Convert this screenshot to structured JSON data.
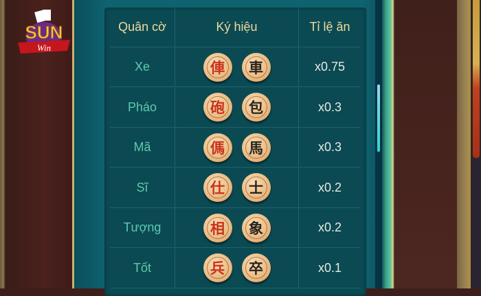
{
  "logo": {
    "text": "SUN",
    "sub": "Win"
  },
  "table": {
    "headers": [
      "Quân cờ",
      "Ký hiệu",
      "Tỉ lệ ăn"
    ],
    "rows": [
      {
        "name": "Xe",
        "red": "俥",
        "black": "車",
        "rate": "x0.75"
      },
      {
        "name": "Pháo",
        "red": "砲",
        "black": "包",
        "rate": "x0.3"
      },
      {
        "name": "Mã",
        "red": "傌",
        "black": "馬",
        "rate": "x0.3"
      },
      {
        "name": "Sĩ",
        "red": "仕",
        "black": "士",
        "rate": "x0.2"
      },
      {
        "name": "Tượng",
        "red": "相",
        "black": "象",
        "rate": "x0.2"
      },
      {
        "name": "Tốt",
        "red": "兵",
        "black": "卒",
        "rate": "x0.1"
      }
    ]
  },
  "colors": {
    "panel": "#0f6270",
    "name_text": "#5fc9b0",
    "header_text": "#f0d9a0"
  }
}
